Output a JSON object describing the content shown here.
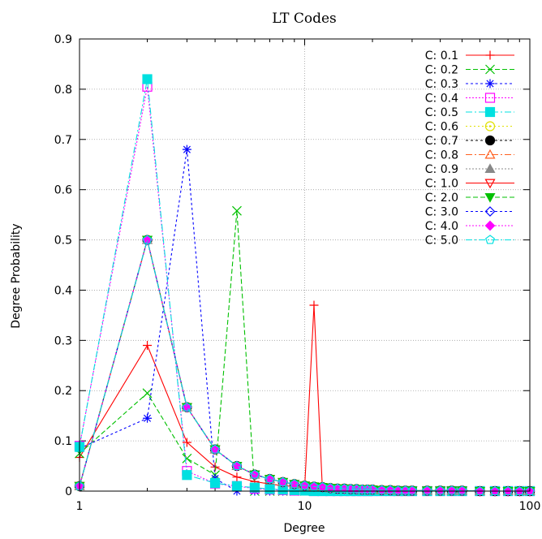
{
  "chart_data": {
    "type": "line",
    "title": "LT Codes",
    "xlabel": "Degree",
    "ylabel": "Degree Probability",
    "xscale": "log",
    "xlim": [
      1,
      100
    ],
    "ylim": [
      0,
      0.9
    ],
    "xticks": [
      1,
      10,
      100
    ],
    "yticks": [
      0,
      0.1,
      0.2,
      0.3,
      0.4,
      0.5,
      0.6,
      0.7,
      0.8,
      0.9
    ],
    "grid": true,
    "legend_position": "top-right",
    "series": [
      {
        "name": "C: 0.1",
        "color": "#ff0000",
        "dash": "solid",
        "marker": "plus",
        "x": [
          1,
          2,
          3,
          4,
          5,
          6,
          7,
          8,
          9,
          10,
          11,
          12,
          13,
          14,
          15,
          16,
          17,
          18,
          19,
          20,
          22,
          24,
          26,
          28,
          30,
          35,
          40,
          45,
          50,
          60,
          70,
          80,
          90,
          100
        ],
        "y": [
          0.067,
          0.29,
          0.097,
          0.048,
          0.028,
          0.019,
          0.014,
          0.011,
          0.009,
          0.007,
          0.37,
          0,
          0,
          0,
          0,
          0,
          0,
          0,
          0,
          0,
          0,
          0,
          0,
          0,
          0,
          0,
          0,
          0,
          0,
          0,
          0,
          0,
          0,
          0
        ]
      },
      {
        "name": "C: 0.2",
        "color": "#00c000",
        "dash": "6,3",
        "marker": "x",
        "x": [
          1,
          2,
          3,
          4,
          5,
          6,
          7,
          8,
          9,
          10,
          11,
          12,
          13,
          14,
          15,
          16,
          17,
          18,
          19,
          20,
          22,
          24,
          26,
          28,
          30,
          35,
          40,
          45,
          50,
          60,
          70,
          80,
          90,
          100
        ],
        "y": [
          0.075,
          0.195,
          0.065,
          0.032,
          0.558,
          0,
          0,
          0,
          0,
          0,
          0,
          0,
          0,
          0,
          0,
          0,
          0,
          0,
          0,
          0,
          0,
          0,
          0,
          0,
          0,
          0,
          0,
          0,
          0,
          0,
          0,
          0,
          0,
          0
        ]
      },
      {
        "name": "C: 0.3",
        "color": "#0000ff",
        "dash": "3,3",
        "marker": "star",
        "x": [
          1,
          2,
          3,
          4,
          5,
          6,
          7,
          8,
          9,
          10,
          11,
          12,
          13,
          14,
          15,
          16,
          17,
          18,
          19,
          20,
          22,
          24,
          26,
          28,
          30,
          35,
          40,
          45,
          50,
          60,
          70,
          80,
          90,
          100
        ],
        "y": [
          0.085,
          0.145,
          0.68,
          0.025,
          0,
          0,
          0,
          0,
          0,
          0,
          0,
          0,
          0,
          0,
          0,
          0,
          0,
          0,
          0,
          0,
          0,
          0,
          0,
          0,
          0,
          0,
          0,
          0,
          0,
          0,
          0,
          0,
          0,
          0
        ]
      },
      {
        "name": "C: 0.4",
        "color": "#ff00ff",
        "dash": "2,2",
        "marker": "square",
        "x": [
          1,
          2,
          3,
          4,
          5,
          6,
          7,
          8,
          9,
          10,
          11,
          12,
          13,
          14,
          15,
          16,
          17,
          18,
          19,
          20,
          22,
          24,
          26,
          28,
          30,
          35,
          40,
          45,
          50,
          60,
          70,
          80,
          90,
          100
        ],
        "y": [
          0.09,
          0.805,
          0.04,
          0.015,
          0.01,
          0.005,
          0.003,
          0.002,
          0.001,
          0.001,
          0,
          0,
          0,
          0,
          0,
          0,
          0,
          0,
          0,
          0,
          0,
          0,
          0,
          0,
          0,
          0,
          0,
          0,
          0,
          0,
          0,
          0,
          0,
          0
        ]
      },
      {
        "name": "C: 0.5",
        "color": "#00e0e0",
        "dash": "8,3,2,3",
        "marker": "filled-square",
        "x": [
          1,
          2,
          3,
          4,
          5,
          6,
          7,
          8,
          9,
          10,
          11,
          12,
          13,
          14,
          15,
          16,
          17,
          18,
          19,
          20,
          22,
          24,
          26,
          28,
          30,
          35,
          40,
          45,
          50,
          60,
          70,
          80,
          90,
          100
        ],
        "y": [
          0.088,
          0.82,
          0.032,
          0.016,
          0.01,
          0.007,
          0.004,
          0.003,
          0.002,
          0.001,
          0,
          0,
          0,
          0,
          0,
          0,
          0,
          0,
          0,
          0,
          0,
          0,
          0,
          0,
          0,
          0,
          0,
          0,
          0,
          0,
          0,
          0,
          0,
          0
        ]
      },
      {
        "name": "C: 0.6",
        "color": "#e0e000",
        "dash": "2,3",
        "marker": "circle-dot",
        "x": [
          1,
          2,
          3,
          4,
          5,
          6,
          7,
          8,
          9,
          10,
          11,
          12,
          13,
          14,
          15,
          16,
          17,
          18,
          19,
          20,
          22,
          24,
          26,
          28,
          30,
          35,
          40,
          45,
          50,
          60,
          70,
          80,
          90,
          100
        ],
        "y": [
          0.01,
          0.5,
          0.167,
          0.083,
          0.05,
          0.033,
          0.024,
          0.018,
          0.014,
          0.011,
          0.009,
          0.008,
          0.006,
          0.005,
          0.005,
          0.004,
          0.004,
          0.003,
          0.003,
          0.003,
          0.002,
          0.002,
          0.001,
          0.001,
          0.001,
          0.001,
          0.001,
          0.001,
          0.001,
          0,
          0,
          0,
          0,
          0
        ]
      },
      {
        "name": "C: 0.7",
        "color": "#000000",
        "dash": "3,3",
        "marker": "filled-circle",
        "x": [
          1,
          2,
          3,
          4,
          5,
          6,
          7,
          8,
          9,
          10,
          11,
          12,
          13,
          14,
          15,
          16,
          17,
          18,
          19,
          20,
          22,
          24,
          26,
          28,
          30,
          35,
          40,
          45,
          50,
          60,
          70,
          80,
          90,
          100
        ],
        "y": [
          0.01,
          0.5,
          0.167,
          0.083,
          0.05,
          0.033,
          0.024,
          0.018,
          0.014,
          0.011,
          0.009,
          0.008,
          0.006,
          0.005,
          0.005,
          0.004,
          0.004,
          0.003,
          0.003,
          0.003,
          0.002,
          0.002,
          0.001,
          0.001,
          0.001,
          0.001,
          0.001,
          0.001,
          0.001,
          0,
          0,
          0,
          0,
          0
        ]
      },
      {
        "name": "C: 0.8",
        "color": "#ff6020",
        "dash": "8,3,2,3",
        "marker": "triangle",
        "x": [
          1,
          2,
          3,
          4,
          5,
          6,
          7,
          8,
          9,
          10,
          11,
          12,
          13,
          14,
          15,
          16,
          17,
          18,
          19,
          20,
          22,
          24,
          26,
          28,
          30,
          35,
          40,
          45,
          50,
          60,
          70,
          80,
          90,
          100
        ],
        "y": [
          0.01,
          0.5,
          0.167,
          0.083,
          0.05,
          0.033,
          0.024,
          0.018,
          0.014,
          0.011,
          0.009,
          0.008,
          0.006,
          0.005,
          0.005,
          0.004,
          0.004,
          0.003,
          0.003,
          0.003,
          0.002,
          0.002,
          0.001,
          0.001,
          0.001,
          0.001,
          0.001,
          0.001,
          0.001,
          0,
          0,
          0,
          0,
          0
        ]
      },
      {
        "name": "C: 0.9",
        "color": "#888888",
        "dash": "2,2",
        "marker": "filled-triangle",
        "x": [
          1,
          2,
          3,
          4,
          5,
          6,
          7,
          8,
          9,
          10,
          11,
          12,
          13,
          14,
          15,
          16,
          17,
          18,
          19,
          20,
          22,
          24,
          26,
          28,
          30,
          35,
          40,
          45,
          50,
          60,
          70,
          80,
          90,
          100
        ],
        "y": [
          0.01,
          0.5,
          0.167,
          0.083,
          0.05,
          0.033,
          0.024,
          0.018,
          0.014,
          0.011,
          0.009,
          0.008,
          0.006,
          0.005,
          0.005,
          0.004,
          0.004,
          0.003,
          0.003,
          0.003,
          0.002,
          0.002,
          0.001,
          0.001,
          0.001,
          0.001,
          0.001,
          0.001,
          0.001,
          0,
          0,
          0,
          0,
          0
        ]
      },
      {
        "name": "C: 1.0",
        "color": "#ff0000",
        "dash": "solid",
        "marker": "inverted-triangle",
        "x": [
          1,
          2,
          3,
          4,
          5,
          6,
          7,
          8,
          9,
          10,
          11,
          12,
          13,
          14,
          15,
          16,
          17,
          18,
          19,
          20,
          22,
          24,
          26,
          28,
          30,
          35,
          40,
          45,
          50,
          60,
          70,
          80,
          90,
          100
        ],
        "y": [
          0.01,
          0.5,
          0.167,
          0.083,
          0.05,
          0.033,
          0.024,
          0.018,
          0.014,
          0.011,
          0.009,
          0.008,
          0.006,
          0.005,
          0.005,
          0.004,
          0.004,
          0.003,
          0.003,
          0.003,
          0.002,
          0.002,
          0.001,
          0.001,
          0.001,
          0.001,
          0.001,
          0.001,
          0.001,
          0,
          0,
          0,
          0,
          0
        ]
      },
      {
        "name": "C: 2.0",
        "color": "#00c000",
        "dash": "6,3",
        "marker": "filled-inverted-triangle",
        "x": [
          1,
          2,
          3,
          4,
          5,
          6,
          7,
          8,
          9,
          10,
          11,
          12,
          13,
          14,
          15,
          16,
          17,
          18,
          19,
          20,
          22,
          24,
          26,
          28,
          30,
          35,
          40,
          45,
          50,
          60,
          70,
          80,
          90,
          100
        ],
        "y": [
          0.01,
          0.5,
          0.167,
          0.083,
          0.05,
          0.033,
          0.024,
          0.018,
          0.014,
          0.011,
          0.009,
          0.008,
          0.006,
          0.005,
          0.005,
          0.004,
          0.004,
          0.003,
          0.003,
          0.003,
          0.002,
          0.002,
          0.001,
          0.001,
          0.001,
          0.001,
          0.001,
          0.001,
          0.001,
          0,
          0,
          0,
          0,
          0
        ]
      },
      {
        "name": "C: 3.0",
        "color": "#0000ff",
        "dash": "3,3",
        "marker": "diamond",
        "x": [
          1,
          2,
          3,
          4,
          5,
          6,
          7,
          8,
          9,
          10,
          11,
          12,
          13,
          14,
          15,
          16,
          17,
          18,
          19,
          20,
          22,
          24,
          26,
          28,
          30,
          35,
          40,
          45,
          50,
          60,
          70,
          80,
          90,
          100
        ],
        "y": [
          0.01,
          0.5,
          0.167,
          0.083,
          0.05,
          0.033,
          0.024,
          0.018,
          0.014,
          0.011,
          0.009,
          0.008,
          0.006,
          0.005,
          0.005,
          0.004,
          0.004,
          0.003,
          0.003,
          0.003,
          0.002,
          0.002,
          0.001,
          0.001,
          0.001,
          0.001,
          0.001,
          0.001,
          0.001,
          0,
          0,
          0,
          0,
          0
        ]
      },
      {
        "name": "C: 4.0",
        "color": "#ff00ff",
        "dash": "2,2",
        "marker": "filled-diamond",
        "x": [
          1,
          2,
          3,
          4,
          5,
          6,
          7,
          8,
          9,
          10,
          11,
          12,
          13,
          14,
          15,
          16,
          17,
          18,
          19,
          20,
          22,
          24,
          26,
          28,
          30,
          35,
          40,
          45,
          50,
          60,
          70,
          80,
          90,
          100
        ],
        "y": [
          0.01,
          0.5,
          0.167,
          0.083,
          0.05,
          0.033,
          0.024,
          0.018,
          0.014,
          0.011,
          0.009,
          0.008,
          0.006,
          0.005,
          0.005,
          0.004,
          0.004,
          0.003,
          0.003,
          0.003,
          0.002,
          0.002,
          0.001,
          0.001,
          0.001,
          0.001,
          0.001,
          0.001,
          0.001,
          0,
          0,
          0,
          0,
          0
        ]
      },
      {
        "name": "C: 5.0",
        "color": "#00e0e0",
        "dash": "8,3,2,3",
        "marker": "pentagon",
        "x": [
          1,
          2,
          3,
          4,
          5,
          6,
          7,
          8,
          9,
          10,
          11,
          12,
          13,
          14,
          15,
          16,
          17,
          18,
          19,
          20,
          22,
          24,
          26,
          28,
          30,
          35,
          40,
          45,
          50,
          60,
          70,
          80,
          90,
          100
        ],
        "y": [
          0.01,
          0.5,
          0.167,
          0.083,
          0.05,
          0.033,
          0.024,
          0.018,
          0.014,
          0.011,
          0.009,
          0.008,
          0.006,
          0.005,
          0.005,
          0.004,
          0.004,
          0.003,
          0.003,
          0.003,
          0.002,
          0.002,
          0.001,
          0.001,
          0.001,
          0.001,
          0.001,
          0.001,
          0.001,
          0,
          0,
          0,
          0,
          0
        ]
      }
    ]
  }
}
